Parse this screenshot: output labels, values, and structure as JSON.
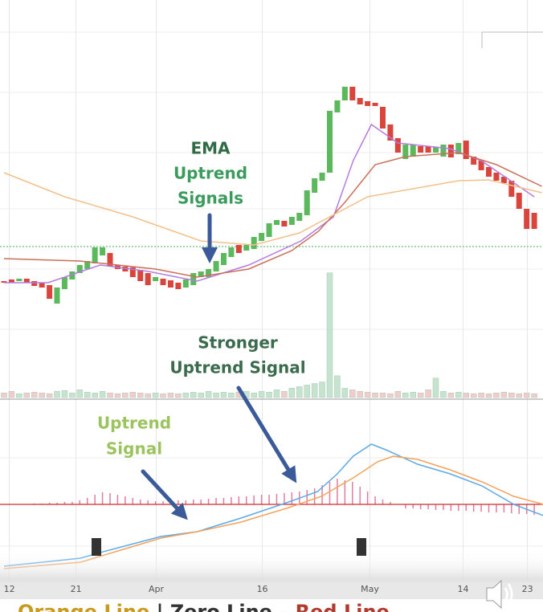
{
  "chart_data": [
    {
      "type": "candlestick",
      "ylim": [
        0,
        490
      ],
      "open": [
        140,
        142,
        140,
        143,
        140,
        138,
        135,
        112,
        130,
        142,
        150,
        155,
        162,
        172,
        175,
        160,
        158,
        157,
        154,
        150,
        140,
        143,
        141,
        138,
        132,
        135,
        145,
        145,
        152,
        160,
        170,
        185,
        178,
        180,
        190,
        195,
        210,
        215,
        210,
        215,
        222,
        250,
        265,
        275,
        350,
        365,
        382,
        368,
        364,
        362,
        357,
        335,
        318,
        292,
        295,
        308,
        308,
        300,
        295,
        310,
        298,
        315,
        295,
        290,
        282,
        275,
        270,
        265,
        250,
        230,
        225
      ],
      "close": [
        138,
        138,
        143,
        138,
        134,
        132,
        118,
        132,
        145,
        152,
        160,
        165,
        182,
        182,
        158,
        155,
        152,
        145,
        140,
        135,
        145,
        135,
        132,
        130,
        142,
        150,
        152,
        155,
        165,
        175,
        182,
        175,
        185,
        195,
        200,
        212,
        216,
        208,
        220,
        225,
        253,
        268,
        275,
        352,
        365,
        382,
        365,
        360,
        358,
        358,
        330,
        315,
        300,
        310,
        310,
        300,
        300,
        307,
        310,
        294,
        312,
        292,
        285,
        278,
        270,
        265,
        262,
        245,
        230,
        205,
        205
      ],
      "up_color": "#5cb85c",
      "down_color": "#d9453c",
      "reference_line": {
        "value": 183,
        "color": "#4caf50"
      },
      "series": [
        {
          "color": "#b57be0",
          "x": [
            0,
            5.8,
            12.7,
            19.1,
            25.5,
            32.3,
            39.2,
            43.5,
            46.1,
            48.5,
            52,
            58.8,
            63,
            70
          ],
          "values": [
            138,
            138,
            160,
            152,
            140,
            160,
            190,
            220,
            290,
            335,
            312,
            305,
            290,
            245
          ]
        },
        {
          "color": "#c9705a",
          "x": [
            0,
            10,
            20,
            25.5,
            32.3,
            38,
            41.5,
            45,
            49,
            53,
            60,
            65,
            71
          ],
          "values": [
            168,
            165,
            155,
            145,
            155,
            178,
            202,
            238,
            285,
            295,
            300,
            285,
            258
          ]
        },
        {
          "color": "#f3c08a",
          "x": [
            0,
            8,
            17,
            26,
            33,
            39,
            44,
            48,
            54,
            60,
            64,
            71
          ],
          "values": [
            275,
            245,
            220,
            190,
            185,
            200,
            225,
            245,
            255,
            265,
            266,
            250
          ]
        }
      ],
      "annotations": [
        {
          "lines": [
            "EMA",
            "Uptrend",
            "Signals"
          ],
          "colors": [
            "#2f6b45",
            "#3a9b5c",
            "#3a9b5c"
          ]
        }
      ]
    },
    {
      "type": "bar",
      "ylim": [
        0,
        170
      ],
      "values": [
        6,
        8,
        5,
        6,
        7,
        6,
        5,
        8,
        9,
        6,
        10,
        7,
        6,
        8,
        6,
        5,
        6,
        7,
        6,
        5,
        6,
        5,
        6,
        5,
        6,
        7,
        6,
        8,
        6,
        7,
        6,
        7,
        8,
        6,
        8,
        7,
        10,
        8,
        12,
        14,
        16,
        18,
        20,
        160,
        28,
        12,
        10,
        8,
        7,
        6,
        6,
        5,
        8,
        6,
        7,
        6,
        10,
        25,
        8,
        6,
        7,
        6,
        5,
        6,
        5,
        6,
        7,
        6,
        5,
        6,
        5
      ],
      "up_color": "#c5e3cf",
      "down_color": "#f2cccc"
    },
    {
      "type": "line",
      "ylim": [
        -92,
        128
      ],
      "zero_line": {
        "value": 0,
        "color": "#cc2a2a"
      },
      "histogram": {
        "color": "#e27c9c",
        "values": [
          0,
          0,
          0,
          0,
          1,
          1,
          2,
          2,
          3,
          3,
          5,
          8,
          12,
          15,
          14,
          12,
          10,
          8,
          6,
          5,
          4,
          4,
          4,
          5,
          5,
          6,
          6,
          7,
          8,
          8,
          9,
          10,
          10,
          11,
          12,
          12,
          13,
          14,
          15,
          16,
          18,
          20,
          24,
          28,
          32,
          30,
          28,
          22,
          16,
          10,
          6,
          3,
          0,
          -5,
          -5,
          -6,
          -6,
          -7,
          -7,
          -8,
          -8,
          -8,
          -9,
          -9,
          -10,
          -10,
          -10,
          -11,
          -12,
          -12,
          -13
        ]
      },
      "series": [
        {
          "color": "#5aa9e6",
          "x": [
            0,
            10.1,
            12.7,
            20.7,
            25.5,
            31.3,
            37.6,
            41.4,
            44,
            46.1,
            48.5,
            50.4,
            54.6,
            58.9,
            63.1,
            67.3,
            71.2
          ],
          "values": [
            -77,
            -67,
            -60,
            -40,
            -34,
            -17,
            3,
            16,
            38,
            60,
            75,
            68,
            50,
            38,
            23,
            0,
            -14
          ]
        },
        {
          "color": "#f2a25c",
          "x": [
            0,
            10.1,
            20.7,
            25.5,
            31.3,
            37.6,
            41.9,
            46.1,
            49.3,
            51.4,
            54.6,
            58.9,
            63.1,
            67.3,
            71.2
          ],
          "values": [
            -80,
            -72,
            -42,
            -34,
            -22,
            -4,
            10,
            33,
            53,
            60,
            56,
            43,
            28,
            10,
            0
          ]
        }
      ],
      "xticks": [
        {
          "value": 0.7,
          "label": "12"
        },
        {
          "value": 9.5,
          "label": "21"
        },
        {
          "value": 20.1,
          "label": "Apr"
        },
        {
          "value": 34.1,
          "label": "16"
        },
        {
          "value": 48.3,
          "label": "May"
        },
        {
          "value": 60.6,
          "label": "14"
        },
        {
          "value": 69.1,
          "label": "23"
        }
      ],
      "annotations": [
        {
          "lines": [
            "Stronger",
            "Uptrend Signal"
          ],
          "colors": [
            "#3b6b4d",
            "#3b6b4d"
          ]
        },
        {
          "lines": [
            "Uptrend",
            "Signal"
          ],
          "colors": [
            "#9cc45e",
            "#9cc45e"
          ]
        }
      ]
    }
  ],
  "caption": {
    "parts": [
      {
        "text": "Orange Line",
        "color": "#c89a1e"
      },
      {
        "text": " | Zero Line – ",
        "color": "#333333"
      },
      {
        "text": "Red Line",
        "color": "#b03a2e"
      }
    ]
  }
}
